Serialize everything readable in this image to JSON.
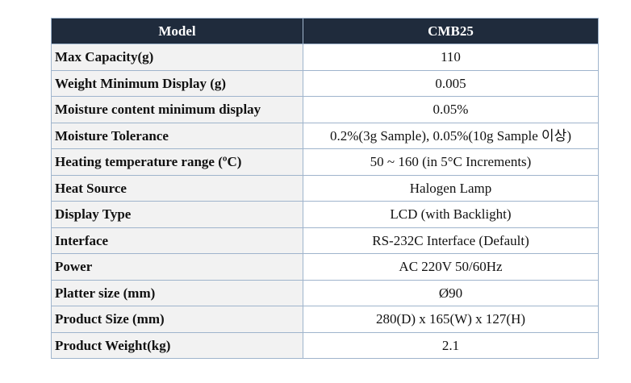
{
  "table": {
    "header": [
      "Model",
      "CMB25"
    ],
    "rows": [
      [
        "Max Capacity(g)",
        "110"
      ],
      [
        "Weight Minimum Display (g)",
        "0.005"
      ],
      [
        "Moisture content minimum display",
        "0.05%"
      ],
      [
        "Moisture Tolerance",
        "0.2%(3g Sample), 0.05%(10g Sample 이상)"
      ],
      [
        "Heating temperature range (ºC)",
        "50 ~ 160 (in 5°C Increments)"
      ],
      [
        "Heat Source",
        "Halogen Lamp"
      ],
      [
        "Display Type",
        "LCD (with Backlight)"
      ],
      [
        "Interface",
        "RS-232C Interface (Default)"
      ],
      [
        "Power",
        "AC 220V 50/60Hz"
      ],
      [
        "Platter size (mm)",
        "Ø90"
      ],
      [
        "Product Size (mm)",
        "280(D) x 165(W) x 127(H)"
      ],
      [
        "Product Weight(kg)",
        "2.1"
      ]
    ]
  }
}
